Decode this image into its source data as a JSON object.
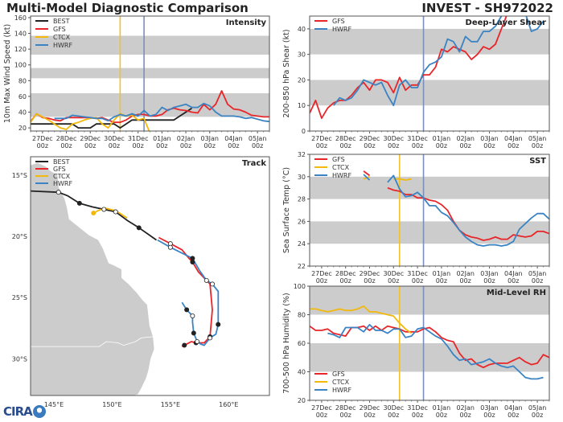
{
  "header": {
    "main_title": "Multi-Model Diagnostic Comparison",
    "storm_title": "INVEST - SH972022"
  },
  "logo": {
    "text": "CIRA",
    "icon": "globe-icon"
  },
  "colors": {
    "BEST": "#222222",
    "GFS": "#e8262a",
    "CTCX": "#f2b90c",
    "HWRF": "#3b84c4",
    "band": "#cccccc",
    "init_line_ctcx": "#f2c130",
    "init_line_main": "#7b8fba",
    "land": "#cccccc"
  },
  "x_axis": {
    "labels": [
      "27Dec",
      "28Dec",
      "29Dec",
      "30Dec",
      "31Dec",
      "01Jan",
      "02Jan",
      "03Jan",
      "04Jan",
      "05Jan"
    ],
    "sublabel": "00z",
    "range_days": [
      -0.5,
      9.5
    ]
  },
  "chart_data": [
    {
      "id": "intensity",
      "type": "line",
      "title": "Intensity",
      "ylabel": "10m Max Wind Speed (kt)",
      "ylim": [
        16,
        162
      ],
      "yticks": [
        20,
        40,
        60,
        80,
        100,
        120,
        140,
        160
      ],
      "bands": [
        [
          34,
          64
        ],
        [
          83,
          96
        ],
        [
          113,
          137
        ]
      ],
      "vlines": [
        {
          "x": 3.25,
          "color_key": "init_line_ctcx"
        },
        {
          "x": 4.25,
          "color_key": "init_line_main"
        }
      ],
      "legend": [
        "BEST",
        "GFS",
        "CTCX",
        "HWRF"
      ],
      "legend_position": "top-left",
      "series": [
        {
          "name": "BEST",
          "x0": -0.5,
          "step": 0.25,
          "values": [
            25,
            25,
            25,
            25,
            25,
            25,
            25,
            25,
            20,
            20,
            20,
            25,
            25,
            25,
            25,
            20,
            25,
            30,
            30,
            30,
            30,
            30,
            30,
            30,
            30,
            35,
            40,
            45
          ]
        },
        {
          "name": "GFS",
          "x0": -0.5,
          "step": 0.25,
          "values": [
            28,
            38,
            33,
            32,
            30,
            29,
            33,
            33,
            33,
            33,
            33,
            32,
            33,
            30,
            27,
            27,
            30,
            35,
            37,
            37,
            35,
            35,
            37,
            43,
            45,
            43,
            42,
            40,
            39,
            50,
            43,
            50,
            67,
            50,
            44,
            43,
            40,
            36,
            35,
            34,
            34,
            36,
            33,
            34,
            33,
            36,
            33,
            32,
            33
          ]
        },
        {
          "name": "CTCX",
          "x0": -0.5,
          "step": 0.25,
          "values": [
            27,
            38,
            34,
            30,
            25,
            20,
            18,
            25,
            27,
            30,
            32,
            33,
            25,
            20,
            30,
            38,
            35,
            36,
            30,
            32,
            13
          ]
        },
        {
          "name": "HWRF",
          "x0": 0.5,
          "step": 0.25,
          "values": [
            32,
            32,
            32,
            36,
            35,
            34,
            33,
            32,
            32,
            29,
            34,
            37,
            35,
            38,
            35,
            42,
            35,
            37,
            46,
            42,
            46,
            48,
            50,
            46,
            46,
            51,
            48,
            40,
            35,
            35,
            35,
            34,
            32,
            33,
            31,
            29,
            28,
            25,
            23,
            24,
            23
          ]
        }
      ]
    },
    {
      "id": "shear",
      "type": "line",
      "title": "Deep-Layer Shear",
      "ylabel": "200-850 hPa Shear (kt)",
      "ylim": [
        0,
        45
      ],
      "yticks": [
        0,
        10,
        20,
        30,
        40
      ],
      "bands": [
        [
          10,
          20
        ],
        [
          30,
          40
        ]
      ],
      "vlines": [
        {
          "x": 4.25,
          "color_key": "init_line_main"
        }
      ],
      "legend": [
        "GFS",
        "HWRF"
      ],
      "legend_position": "top-left",
      "series": [
        {
          "name": "GFS",
          "x0": -0.5,
          "step": 0.25,
          "values": [
            7,
            12,
            5,
            9,
            11,
            12,
            12,
            14,
            17,
            19,
            16,
            20,
            20,
            19,
            15,
            21,
            16,
            18,
            18,
            22,
            22,
            25,
            32,
            31,
            33,
            32,
            31,
            28,
            30,
            33,
            32,
            34,
            40,
            46,
            52
          ]
        },
        {
          "name": "HWRF",
          "x0": 0.5,
          "step": 0.25,
          "values": [
            10,
            13,
            12,
            13,
            16,
            20,
            19,
            18,
            19,
            14,
            10,
            18,
            20,
            17,
            17,
            23,
            26,
            27,
            29,
            36,
            35,
            31,
            37,
            35,
            35,
            39,
            39,
            41,
            45,
            48,
            50,
            52,
            46,
            39,
            40,
            43
          ]
        }
      ]
    },
    {
      "id": "sst",
      "type": "line",
      "title": "SST",
      "ylabel": "Sea Surface Temp (°C)",
      "ylim": [
        22,
        32
      ],
      "yticks": [
        22,
        24,
        26,
        28,
        30,
        32
      ],
      "bands": [
        [
          24,
          26
        ],
        [
          28,
          30
        ],
        [
          32,
          33
        ]
      ],
      "vlines": [
        {
          "x": 3.25,
          "color_key": "init_line_ctcx"
        },
        {
          "x": 4.25,
          "color_key": "init_line_main"
        }
      ],
      "legend": [
        "GFS",
        "CTCX",
        "HWRF"
      ],
      "legend_position": "top-left",
      "series": [
        {
          "name": "GFS",
          "segments": [
            {
              "x0": 1.75,
              "step": 0.25,
              "values": [
                30.5,
                30.1
              ]
            },
            {
              "x0": 2.75,
              "step": 0.25,
              "values": [
                29.0,
                28.8,
                28.7,
                28.4,
                28.4,
                28.1,
                28.1,
                27.9,
                27.8,
                27.5,
                27.0,
                26.0,
                25.2,
                24.8,
                24.6,
                24.5,
                24.3,
                24.4,
                24.6,
                24.4,
                24.4,
                24.8,
                24.7,
                24.6,
                24.7,
                25.1,
                25.1,
                24.9
              ]
            }
          ]
        },
        {
          "name": "CTCX",
          "segments": [
            {
              "x0": 1.75,
              "step": 0.25,
              "values": [
                29.8,
                30.0
              ]
            },
            {
              "x0": 3.0,
              "step": 0.25,
              "values": [
                29.8,
                29.8,
                29.7,
                29.8
              ]
            }
          ]
        },
        {
          "name": "HWRF",
          "segments": [
            {
              "x0": 1.75,
              "step": 0.25,
              "values": [
                30.2,
                29.7
              ]
            },
            {
              "x0": 2.75,
              "step": 0.25,
              "values": [
                29.5,
                30.1,
                28.9,
                28.2,
                28.3,
                28.6,
                28.1,
                27.4,
                27.4,
                26.8,
                26.5,
                25.9,
                25.2,
                24.6,
                24.2,
                23.9,
                23.8,
                23.9,
                23.9,
                23.8,
                23.9,
                24.2,
                25.3,
                25.8,
                26.3,
                26.7,
                26.7,
                26.2
              ]
            }
          ]
        }
      ]
    },
    {
      "id": "rh",
      "type": "line",
      "title": "Mid-Level RH",
      "ylabel": "700-500 hPa Humidity (%)",
      "ylim": [
        20,
        100
      ],
      "yticks": [
        20,
        40,
        60,
        80,
        100
      ],
      "bands": [
        [
          40,
          60
        ],
        [
          80,
          100
        ]
      ],
      "vlines": [
        {
          "x": 3.25,
          "color_key": "init_line_ctcx"
        },
        {
          "x": 4.25,
          "color_key": "init_line_main"
        }
      ],
      "legend": [
        "GFS",
        "CTCX",
        "HWRF"
      ],
      "legend_position": "bottom-left",
      "series": [
        {
          "name": "GFS",
          "x0": -0.5,
          "step": 0.25,
          "values": [
            72,
            69,
            69,
            70,
            67,
            66,
            65,
            71,
            71,
            72,
            69,
            72,
            69,
            72,
            71,
            70,
            68,
            68,
            68,
            70,
            71,
            68,
            64,
            62,
            61,
            53,
            48,
            49,
            45,
            43,
            45,
            46,
            46,
            46,
            48,
            50,
            47,
            45,
            46,
            52,
            50
          ]
        },
        {
          "name": "CTCX",
          "x0": -0.5,
          "step": 0.25,
          "values": [
            84,
            84,
            83,
            82,
            83,
            84,
            83,
            83,
            84,
            86,
            82,
            82,
            81,
            80,
            79,
            74,
            70,
            67
          ]
        },
        {
          "name": "HWRF",
          "x0": 0.25,
          "step": 0.25,
          "values": [
            67,
            66,
            64,
            71,
            71,
            71,
            68,
            73,
            69,
            69,
            67,
            70,
            70,
            64,
            65,
            70,
            71,
            68,
            65,
            63,
            58,
            52,
            48,
            49,
            45,
            46,
            47,
            49,
            46,
            44,
            43,
            44,
            40,
            36,
            35,
            35,
            36
          ]
        }
      ]
    },
    {
      "id": "track",
      "type": "scatter",
      "title": "Track",
      "xlabel": "",
      "ylabel": "",
      "xlim": [
        143.0,
        163.5
      ],
      "ylim": [
        -33.0,
        -13.5
      ],
      "xticks": [
        "145°E",
        "150°E",
        "155°E",
        "160°E"
      ],
      "xtick_values": [
        145,
        150,
        155,
        160
      ],
      "yticks": [
        "15°S",
        "20°S",
        "25°S",
        "30°S"
      ],
      "ytick_values": [
        -15,
        -20,
        -25,
        -30
      ],
      "legend": [
        "BEST",
        "GFS",
        "CTCX",
        "HWRF"
      ],
      "legend_position": "top-left",
      "series": [
        {
          "name": "BEST",
          "points": [
            [
              143.0,
              -16.3
            ],
            [
              145.4,
              -16.4
            ],
            [
              146.2,
              -16.7
            ],
            [
              147.2,
              -17.3
            ],
            [
              148.3,
              -17.6
            ],
            [
              149.3,
              -17.8
            ],
            [
              150.3,
              -18.0
            ],
            [
              151.3,
              -18.7
            ],
            [
              152.3,
              -19.3
            ],
            [
              153.2,
              -19.9
            ],
            [
              153.8,
              -20.3
            ]
          ],
          "markers": [
            {
              "i": 1,
              "filled": false
            },
            {
              "i": 3,
              "filled": true
            },
            {
              "i": 5,
              "filled": false
            },
            {
              "i": 6,
              "filled": false
            },
            {
              "i": 8,
              "filled": true
            }
          ]
        },
        {
          "name": "CTCX",
          "points": [
            [
              148.4,
              -18.1
            ],
            [
              148.8,
              -17.9
            ],
            [
              149.4,
              -17.7
            ],
            [
              150.3,
              -17.9
            ],
            [
              151.3,
              -18.5
            ]
          ],
          "markers": [
            {
              "i": 0,
              "filled": true
            }
          ]
        },
        {
          "name": "GFS",
          "points": [
            [
              154.0,
              -20.1
            ],
            [
              155.0,
              -20.6
            ],
            [
              156.0,
              -21.1
            ],
            [
              156.6,
              -21.8
            ],
            [
              156.9,
              -22.1
            ],
            [
              157.4,
              -22.9
            ],
            [
              158.1,
              -23.6
            ],
            [
              158.4,
              -23.9
            ],
            [
              158.6,
              -26.0
            ],
            [
              158.4,
              -28.2
            ],
            [
              157.9,
              -28.7
            ],
            [
              157.2,
              -28.7
            ],
            [
              156.8,
              -28.6
            ],
            [
              156.2,
              -28.9
            ],
            [
              156.0,
              -29.0
            ]
          ],
          "markers": [
            {
              "i": 1,
              "filled": false
            },
            {
              "i": 4,
              "filled": true
            },
            {
              "i": 6,
              "filled": false
            },
            {
              "i": 9,
              "filled": true
            },
            {
              "i": 11,
              "filled": true
            },
            {
              "i": 13,
              "filled": true
            }
          ]
        },
        {
          "name": "HWRF",
          "points": [
            [
              153.9,
              -20.3
            ],
            [
              155.0,
              -20.9
            ],
            [
              156.9,
              -21.8
            ],
            [
              157.5,
              -22.8
            ],
            [
              158.1,
              -23.6
            ],
            [
              158.6,
              -23.9
            ],
            [
              159.1,
              -24.5
            ],
            [
              159.1,
              -27.2
            ],
            [
              158.9,
              -28.0
            ],
            [
              158.4,
              -28.3
            ],
            [
              157.9,
              -28.9
            ],
            [
              157.6,
              -28.8
            ],
            [
              157.3,
              -28.6
            ],
            [
              157.0,
              -27.9
            ],
            [
              156.9,
              -27.0
            ],
            [
              156.9,
              -26.5
            ],
            [
              156.4,
              -26.0
            ],
            [
              156.0,
              -25.4
            ]
          ],
          "markers": [
            {
              "i": 1,
              "filled": false
            },
            {
              "i": 2,
              "filled": true
            },
            {
              "i": 5,
              "filled": false
            },
            {
              "i": 7,
              "filled": true
            },
            {
              "i": 9,
              "filled": false
            },
            {
              "i": 12,
              "filled": false
            },
            {
              "i": 13,
              "filled": true
            },
            {
              "i": 15,
              "filled": false
            },
            {
              "i": 16,
              "filled": true
            }
          ]
        }
      ]
    }
  ]
}
